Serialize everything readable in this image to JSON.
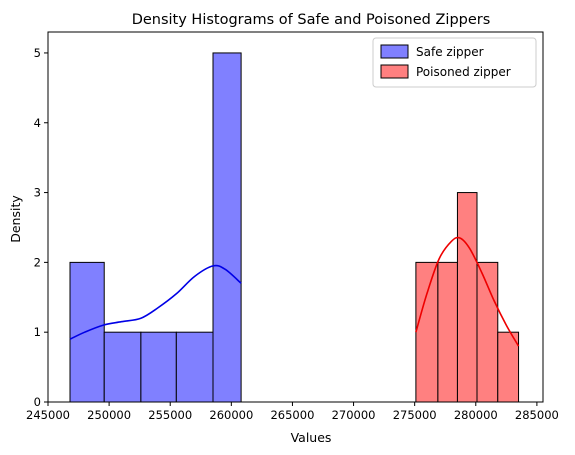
{
  "chart_data": {
    "type": "histogram",
    "title": "Density Histograms of Safe and Poisoned Zippers",
    "xlabel": "Values",
    "ylabel": "Density",
    "xlim": [
      245000,
      285500
    ],
    "ylim": [
      0,
      5.3
    ],
    "xticks": [
      245000,
      250000,
      255000,
      260000,
      265000,
      270000,
      275000,
      280000,
      285000
    ],
    "xtick_labels": [
      "245000",
      "250000",
      "255000",
      "260000",
      "265000",
      "270000",
      "275000",
      "280000",
      "285000"
    ],
    "yticks": [
      0,
      1,
      2,
      3,
      4,
      5
    ],
    "ytick_labels": [
      "0",
      "1",
      "2",
      "3",
      "4",
      "5"
    ],
    "grid": false,
    "legend_position": "top-right",
    "series": [
      {
        "name": "Safe zipper",
        "color": "#8080ff",
        "kde_color": "#0000e6",
        "bins": [
          {
            "x0": 246800,
            "x1": 249600,
            "value": 2
          },
          {
            "x0": 249600,
            "x1": 252600,
            "value": 1
          },
          {
            "x0": 252600,
            "x1": 255500,
            "value": 1
          },
          {
            "x0": 255500,
            "x1": 258500,
            "value": 1
          },
          {
            "x0": 258500,
            "x1": 260800,
            "value": 5
          }
        ],
        "kde": [
          [
            246800,
            0.9
          ],
          [
            248000,
            1.0
          ],
          [
            249500,
            1.1
          ],
          [
            251000,
            1.15
          ],
          [
            252600,
            1.2
          ],
          [
            254000,
            1.35
          ],
          [
            255500,
            1.55
          ],
          [
            257000,
            1.8
          ],
          [
            258500,
            1.95
          ],
          [
            259500,
            1.9
          ],
          [
            260800,
            1.7
          ]
        ]
      },
      {
        "name": "Poisoned zipper",
        "color": "#ff8080",
        "kde_color": "#ee0000",
        "bins": [
          {
            "x0": 275100,
            "x1": 276900,
            "value": 2
          },
          {
            "x0": 276900,
            "x1": 278500,
            "value": 2
          },
          {
            "x0": 278500,
            "x1": 280100,
            "value": 3
          },
          {
            "x0": 280100,
            "x1": 281800,
            "value": 2
          },
          {
            "x0": 281800,
            "x1": 283500,
            "value": 1
          }
        ],
        "kde": [
          [
            275100,
            1.0
          ],
          [
            276000,
            1.55
          ],
          [
            277000,
            2.05
          ],
          [
            278000,
            2.3
          ],
          [
            278700,
            2.35
          ],
          [
            279500,
            2.2
          ],
          [
            280500,
            1.85
          ],
          [
            281500,
            1.45
          ],
          [
            282500,
            1.1
          ],
          [
            283500,
            0.8
          ]
        ]
      }
    ]
  }
}
